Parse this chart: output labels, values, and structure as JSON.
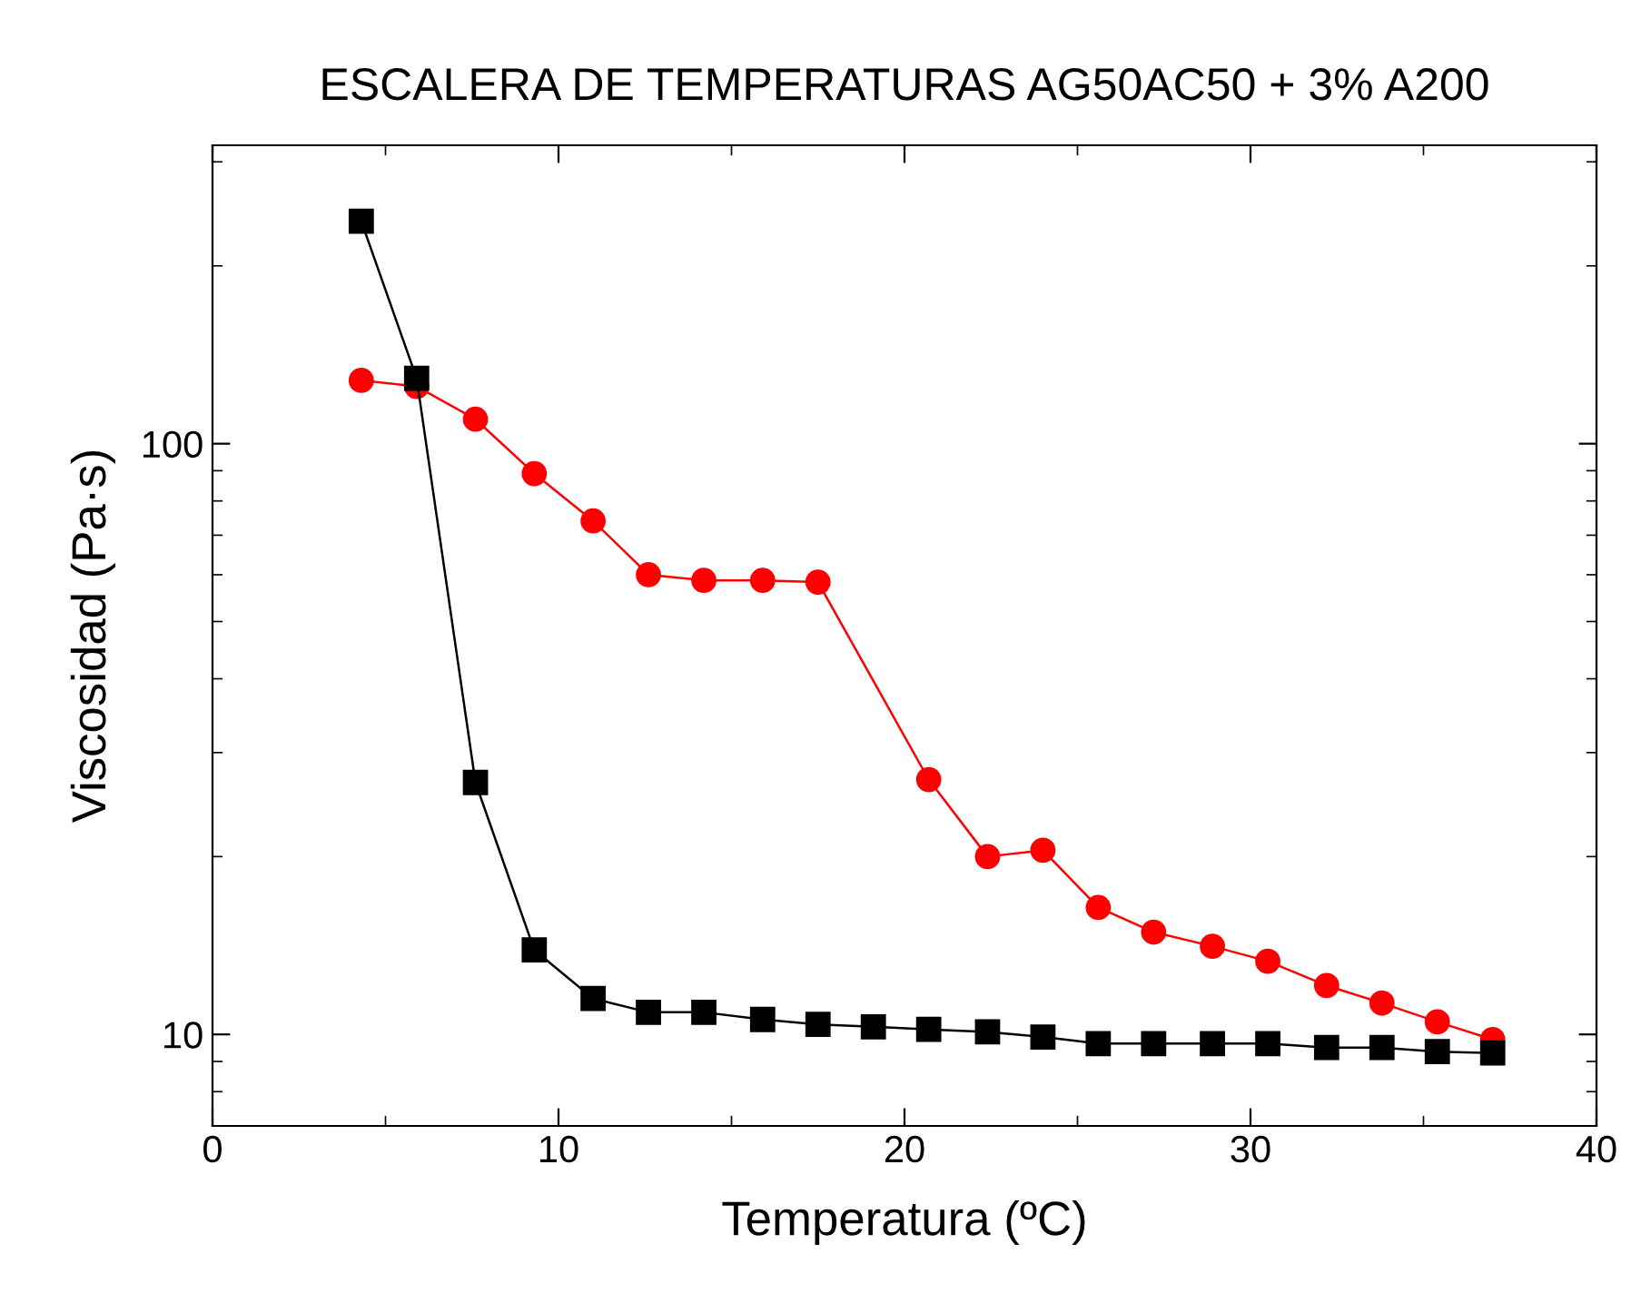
{
  "chart_data": {
    "type": "line",
    "title": "ESCALERA DE TEMPERATURAS AG50AC50 + 3% A200",
    "xlabel": "Temperatura (ºC)",
    "ylabel": "Viscosidad (Pa·s)",
    "xlim": [
      0,
      40
    ],
    "xticks": [
      0,
      10,
      20,
      30,
      40
    ],
    "ylim": [
      7,
      320
    ],
    "yticks": [
      10,
      100
    ],
    "log": "y",
    "grid": false,
    "series": [
      {
        "color": "#000000",
        "marker": "square",
        "x": [
          4.3,
          5.9,
          7.6,
          9.3,
          11.0,
          12.6,
          14.2,
          15.9,
          17.5,
          19.1,
          20.7,
          22.4,
          24.0,
          25.6,
          27.2,
          28.9,
          30.5,
          32.2,
          33.8,
          35.4,
          37.0
        ],
        "values": [
          238,
          129,
          26.7,
          13.9,
          11.5,
          10.9,
          10.9,
          10.6,
          10.4,
          10.3,
          10.2,
          10.1,
          9.9,
          9.65,
          9.65,
          9.65,
          9.65,
          9.5,
          9.5,
          9.35,
          9.3
        ]
      },
      {
        "color": "#ff0000",
        "marker": "circle",
        "x": [
          4.3,
          5.9,
          7.6,
          9.3,
          11.0,
          12.6,
          14.2,
          15.9,
          17.5,
          20.7,
          22.4,
          24.0,
          25.6,
          27.2,
          28.9,
          30.5,
          32.2,
          33.8,
          35.4,
          37.0
        ],
        "values": [
          128,
          125,
          110,
          89,
          74,
          60,
          58.7,
          58.7,
          58.3,
          27,
          20,
          20.5,
          16.4,
          14.9,
          14.1,
          13.3,
          12.1,
          11.3,
          10.5,
          9.8
        ]
      }
    ]
  }
}
